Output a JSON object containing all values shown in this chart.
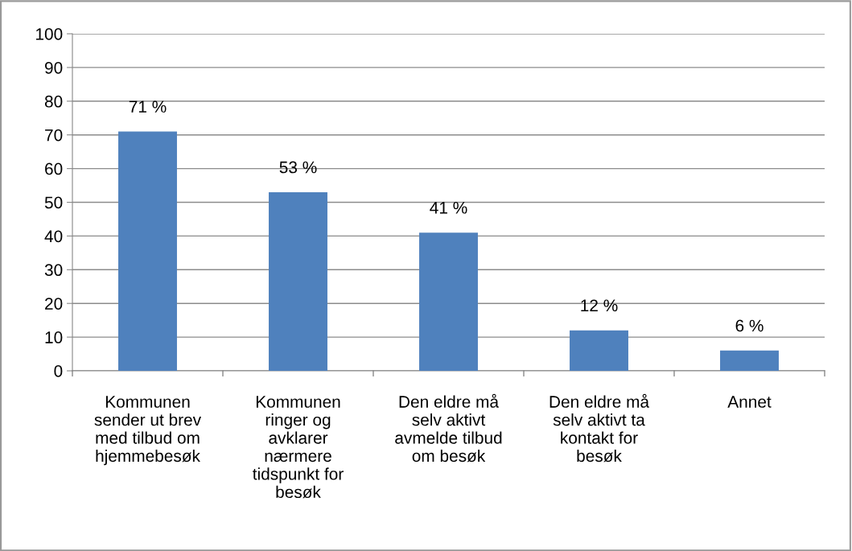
{
  "chart_data": {
    "type": "bar",
    "categories": [
      "Kommunen\nsender ut brev\nmed tilbud om\nhjemmebesøk",
      "Kommunen\nringer og\navklarer\nnærmere\ntidspunkt for\nbesøk",
      "Den eldre må\nselv aktivt\navmelde tilbud\nom besøk",
      "Den eldre må\nselv aktivt ta\nkontakt for\nbesøk",
      "Annet"
    ],
    "values": [
      71,
      53,
      41,
      12,
      6
    ],
    "value_labels": [
      "71 %",
      "53 %",
      "41 %",
      "12 %",
      "6 %"
    ],
    "color": "#4f81bd",
    "ylim": [
      0,
      100
    ],
    "yticks": [
      0,
      10,
      20,
      30,
      40,
      50,
      60,
      70,
      80,
      90,
      100
    ],
    "grid": "y",
    "legend": false
  }
}
